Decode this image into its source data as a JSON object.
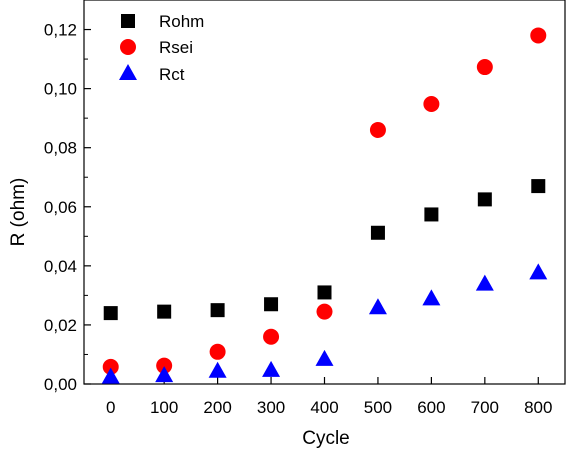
{
  "chart_data": {
    "type": "scatter",
    "title": "",
    "xlabel": "Cycle",
    "ylabel": "R (ohm)",
    "xlim": [
      -50,
      850
    ],
    "ylim": [
      0,
      0.13
    ],
    "x_ticks": [
      0,
      100,
      200,
      300,
      400,
      500,
      600,
      700,
      800
    ],
    "x_tick_labels": [
      "0",
      "100",
      "200",
      "300",
      "400",
      "500",
      "600",
      "700",
      "800"
    ],
    "y_ticks": [
      0,
      0.02,
      0.04,
      0.06,
      0.08,
      0.1,
      0.12
    ],
    "y_tick_labels": [
      "0,00",
      "0,02",
      "0,04",
      "0,06",
      "0,08",
      "0,10",
      "0,12"
    ],
    "grid": false,
    "legend_position": "top-left",
    "x": [
      0,
      100,
      200,
      300,
      400,
      500,
      600,
      700,
      800
    ],
    "series": [
      {
        "name": "Rohm",
        "marker": "square",
        "color": "#000000",
        "values": [
          0.024,
          0.0245,
          0.025,
          0.027,
          0.031,
          0.0512,
          0.0574,
          0.0625,
          0.067
        ]
      },
      {
        "name": "Rsei",
        "marker": "circle",
        "color": "#ff0000",
        "values": [
          0.0058,
          0.0062,
          0.0109,
          0.016,
          0.0245,
          0.086,
          0.0948,
          0.1073,
          0.118
        ]
      },
      {
        "name": "Rct",
        "marker": "triangle",
        "color": "#0000ff",
        "values": [
          0.0025,
          0.003,
          0.0045,
          0.0048,
          0.0085,
          0.026,
          0.029,
          0.034,
          0.0378
        ]
      }
    ]
  }
}
